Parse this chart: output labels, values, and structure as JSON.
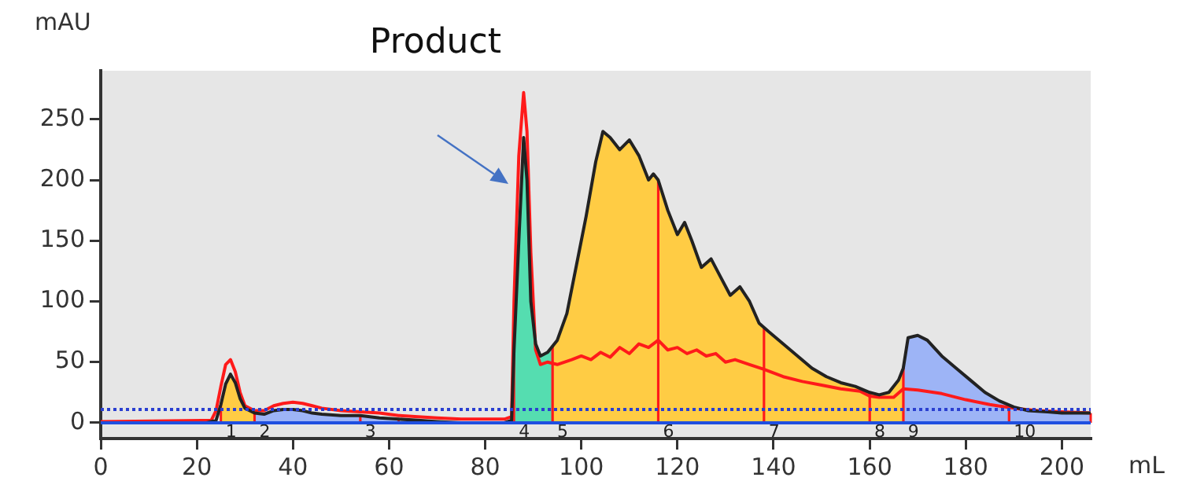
{
  "chart_data": {
    "type": "line",
    "xlabel": "mL",
    "ylabel": "mAU",
    "annotations": [
      {
        "text": "Product",
        "x": 88,
        "y": 272
      }
    ],
    "xlim": [
      0,
      206
    ],
    "xticks": [
      0,
      20,
      40,
      60,
      80,
      100,
      120,
      140,
      160,
      180,
      200
    ],
    "ylim": [
      -13,
      290
    ],
    "yticks": [
      0,
      50,
      100,
      150,
      200,
      250
    ],
    "grid": false,
    "legend": false,
    "marker": "none",
    "line_style": "solid",
    "series": [
      {
        "color": "#222222",
        "x": [
          0,
          16,
          22,
          24,
          25,
          26,
          27,
          28,
          29,
          30,
          32,
          34,
          36,
          38,
          40,
          42,
          44,
          46,
          50,
          54,
          58,
          62,
          66,
          70,
          75,
          84,
          85.5,
          86,
          87,
          88,
          88.7,
          89.5,
          90.5,
          91.5,
          93,
          95,
          97,
          99,
          101,
          103,
          104.5,
          106,
          108,
          110,
          112,
          114,
          115,
          116,
          118,
          120,
          121.5,
          123,
          125,
          127,
          129,
          131,
          133,
          135,
          137,
          139,
          142,
          145,
          148,
          151,
          154,
          157,
          160,
          162,
          164,
          166,
          167,
          168,
          170,
          172,
          175,
          178,
          181,
          184,
          187,
          190,
          193,
          197,
          200,
          206
        ],
        "values": [
          0,
          0,
          0,
          2,
          15,
          32,
          40,
          33,
          20,
          12,
          8,
          7,
          10,
          11,
          11,
          10,
          8,
          7,
          6,
          6,
          4,
          3,
          2,
          1,
          0,
          0,
          2,
          60,
          150,
          235,
          200,
          100,
          65,
          55,
          58,
          68,
          90,
          130,
          170,
          215,
          240,
          235,
          225,
          233,
          220,
          200,
          205,
          200,
          175,
          155,
          165,
          150,
          128,
          135,
          120,
          105,
          112,
          100,
          82,
          75,
          65,
          55,
          45,
          38,
          33,
          30,
          25,
          23,
          25,
          35,
          45,
          70,
          72,
          68,
          55,
          45,
          35,
          25,
          18,
          13,
          10,
          9,
          8,
          8
        ]
      },
      {
        "color": "#ff1a1a",
        "x": [
          0,
          23,
          24,
          25,
          26,
          27,
          28,
          29,
          30,
          32,
          34,
          36,
          38,
          40,
          42,
          44,
          46,
          50,
          54,
          58,
          62,
          66,
          70,
          75,
          80,
          84,
          85.5,
          86,
          87,
          88,
          88.7,
          89.5,
          90.5,
          91.5,
          93,
          95,
          98,
          100,
          102,
          104,
          106,
          108,
          110,
          112,
          114,
          116,
          118,
          120,
          122,
          124,
          126,
          128,
          130,
          132,
          135,
          138,
          142,
          146,
          150,
          154,
          158,
          160,
          162,
          165,
          167,
          170,
          175,
          180,
          185,
          190,
          195,
          200,
          206
        ],
        "values": [
          1,
          2,
          10,
          30,
          48,
          52,
          42,
          25,
          14,
          10,
          10,
          14,
          16,
          17,
          16,
          14,
          12,
          10,
          9,
          8,
          6,
          5,
          4,
          3,
          3,
          3,
          5,
          100,
          220,
          272,
          240,
          140,
          60,
          48,
          50,
          48,
          52,
          55,
          52,
          58,
          54,
          62,
          57,
          65,
          62,
          68,
          60,
          62,
          57,
          60,
          55,
          57,
          50,
          52,
          48,
          44,
          38,
          34,
          31,
          28,
          26,
          22,
          21,
          21,
          28,
          27,
          24,
          19,
          15,
          12,
          10,
          9,
          8
        ]
      },
      {
        "type": "area",
        "name": "1",
        "color": "#ffcc44",
        "x": [
          25,
          26,
          27,
          28,
          29,
          30,
          32
        ],
        "values": [
          15,
          32,
          40,
          33,
          20,
          12,
          8
        ]
      },
      {
        "type": "area",
        "name": "2",
        "color": "#9db4f6",
        "x": [
          32,
          34,
          36,
          38,
          40,
          42,
          44,
          46,
          50,
          54
        ],
        "values": [
          8,
          7,
          10,
          11,
          11,
          10,
          8,
          7,
          6,
          6
        ]
      },
      {
        "type": "area",
        "name": "3",
        "color": "#9db4f6",
        "x": [
          54,
          58,
          62
        ],
        "values": [
          6,
          4,
          3
        ]
      },
      {
        "type": "area",
        "name": "4",
        "color": "#55ddb0",
        "x": [
          86,
          87,
          88,
          88.7,
          89.5,
          90.5,
          91.5,
          93,
          94
        ],
        "values": [
          60,
          150,
          235,
          200,
          100,
          65,
          55,
          58,
          63
        ]
      },
      {
        "type": "area",
        "name": "5",
        "color": "#ffcc44",
        "x": [
          94,
          95,
          97,
          99,
          101,
          103,
          104.5,
          106,
          108,
          110,
          112,
          114,
          115,
          116
        ],
        "values": [
          63,
          68,
          90,
          130,
          170,
          215,
          240,
          235,
          225,
          233,
          220,
          200,
          205,
          200
        ]
      },
      {
        "type": "area",
        "name": "6",
        "color": "#ffcc44",
        "x": [
          116,
          118,
          120,
          121.5,
          123,
          125,
          127,
          129,
          131,
          133,
          135,
          137,
          138
        ],
        "values": [
          200,
          175,
          155,
          165,
          150,
          128,
          135,
          120,
          105,
          112,
          100,
          82,
          78
        ]
      },
      {
        "type": "area",
        "name": "7",
        "color": "#ffcc44",
        "x": [
          138,
          139,
          142,
          145,
          148,
          151,
          154,
          157,
          160
        ],
        "values": [
          78,
          75,
          65,
          55,
          45,
          38,
          33,
          30,
          25
        ]
      },
      {
        "type": "area",
        "name": "8",
        "color": "#ffcc44",
        "x": [
          160,
          162,
          164,
          166,
          167
        ],
        "values": [
          25,
          23,
          25,
          35,
          45
        ]
      },
      {
        "type": "area",
        "name": "9",
        "color": "#9db4f6",
        "x": [
          167,
          168,
          170,
          172,
          175,
          178,
          181,
          184,
          187,
          189
        ],
        "values": [
          45,
          70,
          72,
          68,
          55,
          45,
          35,
          25,
          18,
          15
        ]
      },
      {
        "type": "area",
        "name": "10",
        "color": "#9db4f6",
        "x": [
          189,
          190,
          193,
          197,
          200,
          206
        ],
        "values": [
          15,
          13,
          10,
          9,
          8,
          8
        ]
      }
    ],
    "ref_lines": [
      {
        "axis": "y",
        "value": 0,
        "color": "#1f4fe0",
        "line_style": "solid"
      },
      {
        "axis": "y",
        "value": 11,
        "color": "#2a3fd0",
        "line_style": "dotted"
      }
    ]
  }
}
